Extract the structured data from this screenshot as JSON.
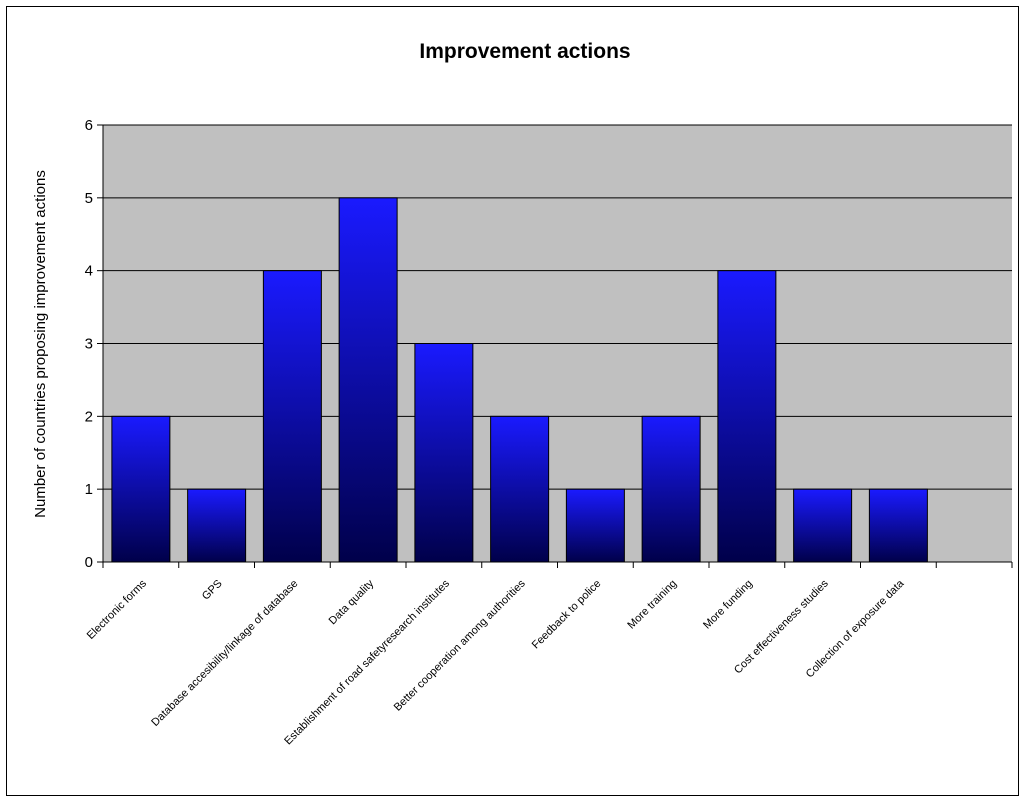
{
  "chart_data": {
    "type": "bar",
    "title": "Improvement actions",
    "xlabel": "",
    "ylabel": "Number of countries proposing improvement actions",
    "categories": [
      "Electronic forms",
      "GPS",
      "Database accesibility/linkage of database",
      "Data quality",
      "Establishment of road safetyresearch institutes",
      "Better cooperation among authorities",
      "Feedback to police",
      "More training",
      "More funding",
      "Cost effectiveness studies",
      "Collection of exposure data"
    ],
    "values": [
      2,
      1,
      4,
      5,
      3,
      2,
      1,
      2,
      4,
      1,
      1
    ],
    "ylim": [
      0,
      6
    ],
    "yticks": [
      "0",
      "1",
      "2",
      "3",
      "4",
      "5",
      "6"
    ],
    "grid": true,
    "legend": "none",
    "colors": {
      "plot_background": "#c0c0c0",
      "bar_top": "#1a1aff",
      "bar_bottom": "#00004a",
      "gridline": "#000000"
    }
  }
}
